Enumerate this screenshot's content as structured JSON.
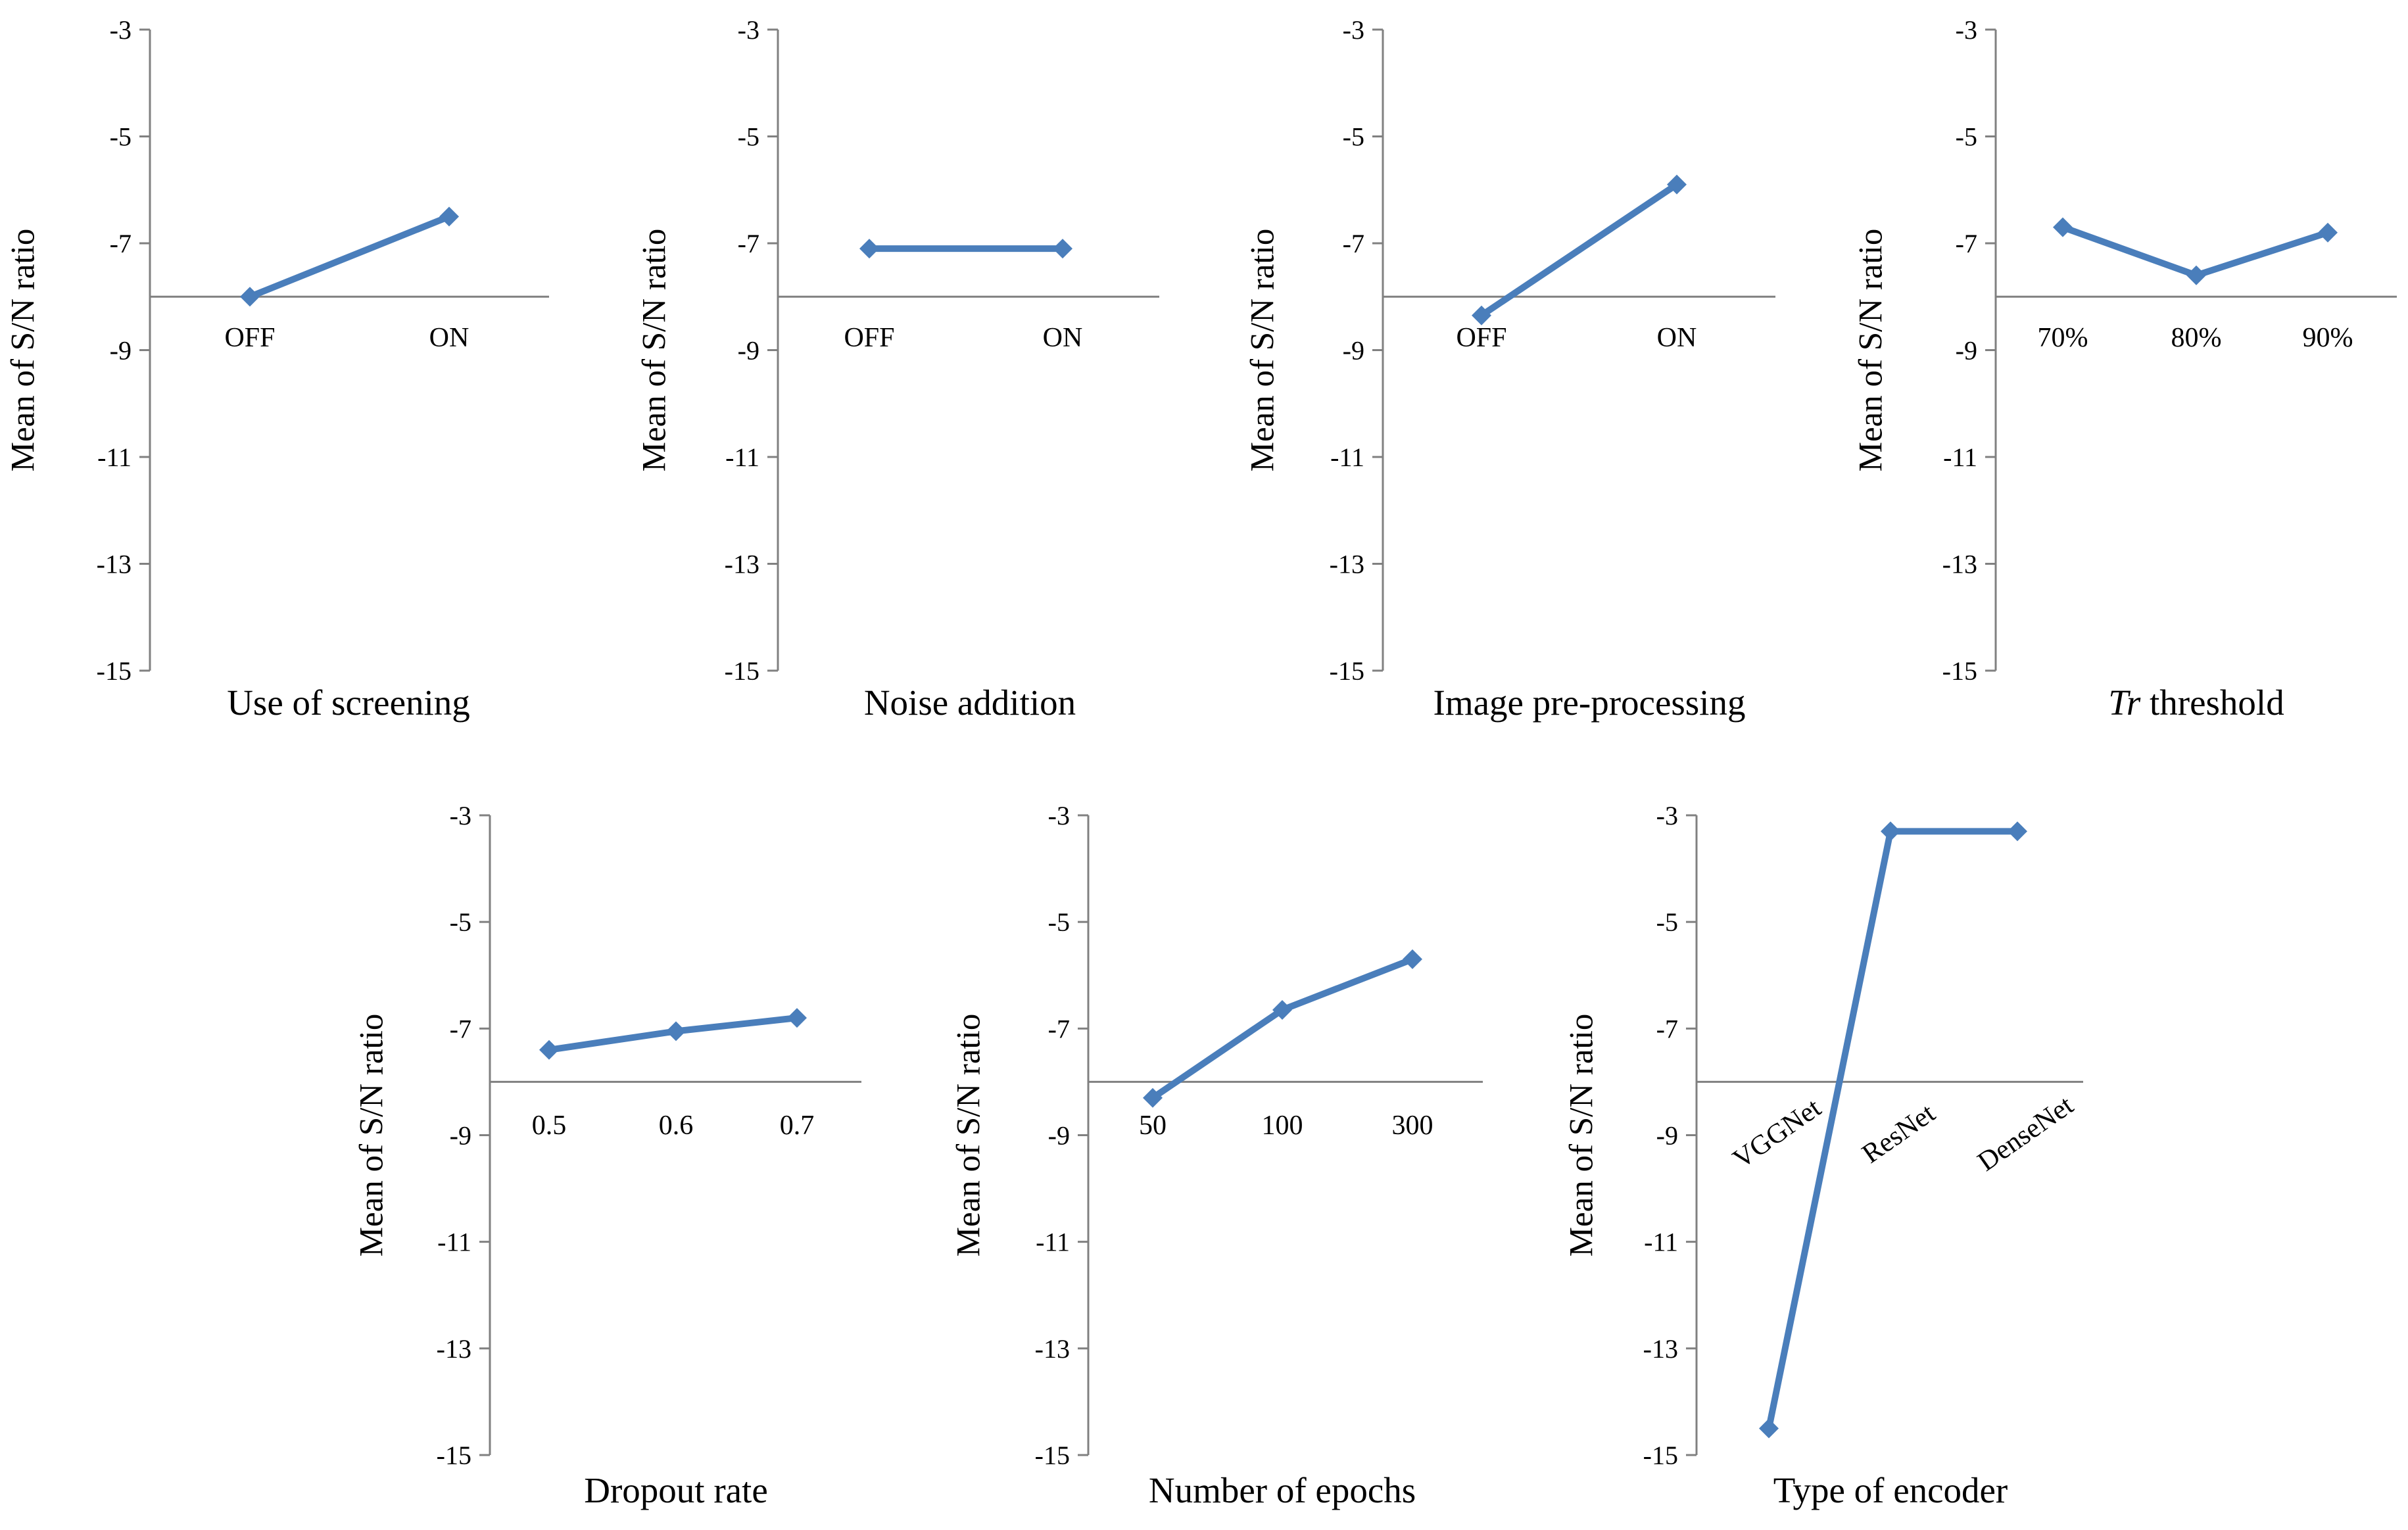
{
  "figure": {
    "line_color": "#4a7ebb",
    "axis_color": "#808080"
  },
  "chart_data": [
    {
      "type": "line",
      "xlabel": "Use of screening",
      "ylabel": "Mean of S/N ratio",
      "categories": [
        "OFF",
        "ON"
      ],
      "values": [
        -8.0,
        -6.5
      ],
      "ylim": [
        -15,
        -3
      ],
      "yticks": [
        "-3",
        "-5",
        "-7",
        "-9",
        "-11",
        "-13",
        "-15"
      ],
      "x_axis_crosses_at": -8
    },
    {
      "type": "line",
      "xlabel": "Noise addition",
      "ylabel": "Mean of S/N ratio",
      "categories": [
        "OFF",
        "ON"
      ],
      "values": [
        -7.1,
        -7.1
      ],
      "ylim": [
        -15,
        -3
      ],
      "yticks": [
        "-3",
        "-5",
        "-7",
        "-9",
        "-11",
        "-13",
        "-15"
      ],
      "x_axis_crosses_at": -8
    },
    {
      "type": "line",
      "xlabel": "Image pre-processing",
      "ylabel": "Mean of S/N ratio",
      "categories": [
        "OFF",
        "ON"
      ],
      "values": [
        -8.35,
        -5.9
      ],
      "ylim": [
        -15,
        -3
      ],
      "yticks": [
        "-3",
        "-5",
        "-7",
        "-9",
        "-11",
        "-13",
        "-15"
      ],
      "x_axis_crosses_at": -8
    },
    {
      "type": "line",
      "xlabel_italic": "Tr",
      "xlabel": " threshold",
      "ylabel": "Mean of S/N ratio",
      "categories": [
        "70%",
        "80%",
        "90%"
      ],
      "values": [
        -6.7,
        -7.6,
        -6.8
      ],
      "ylim": [
        -15,
        -3
      ],
      "yticks": [
        "-3",
        "-5",
        "-7",
        "-9",
        "-11",
        "-13",
        "-15"
      ],
      "x_axis_crosses_at": -8
    },
    {
      "type": "line",
      "xlabel": "Dropout rate",
      "ylabel": "Mean of S/N ratio",
      "categories": [
        "0.5",
        "0.6",
        "0.7"
      ],
      "values": [
        -7.4,
        -7.05,
        -6.8
      ],
      "ylim": [
        -15,
        -3
      ],
      "yticks": [
        "-3",
        "-5",
        "-7",
        "-9",
        "-11",
        "-13",
        "-15"
      ],
      "x_axis_crosses_at": -8
    },
    {
      "type": "line",
      "xlabel": "Number of epochs",
      "ylabel": "Mean of S/N ratio",
      "categories": [
        "50",
        "100",
        "300"
      ],
      "values": [
        -8.3,
        -6.65,
        -5.7
      ],
      "ylim": [
        -15,
        -3
      ],
      "yticks": [
        "-3",
        "-5",
        "-7",
        "-9",
        "-11",
        "-13",
        "-15"
      ],
      "x_axis_crosses_at": -8
    },
    {
      "type": "line",
      "xlabel": "Type of encoder",
      "ylabel": "Mean of S/N ratio",
      "categories": [
        "VGGNet",
        "ResNet",
        "DenseNet"
      ],
      "values": [
        -14.5,
        -3.3,
        -3.3
      ],
      "ylim": [
        -15,
        -3
      ],
      "yticks": [
        "-3",
        "-5",
        "-7",
        "-9",
        "-11",
        "-13",
        "-15"
      ],
      "x_axis_crosses_at": -8,
      "rotated_categories": true
    }
  ]
}
